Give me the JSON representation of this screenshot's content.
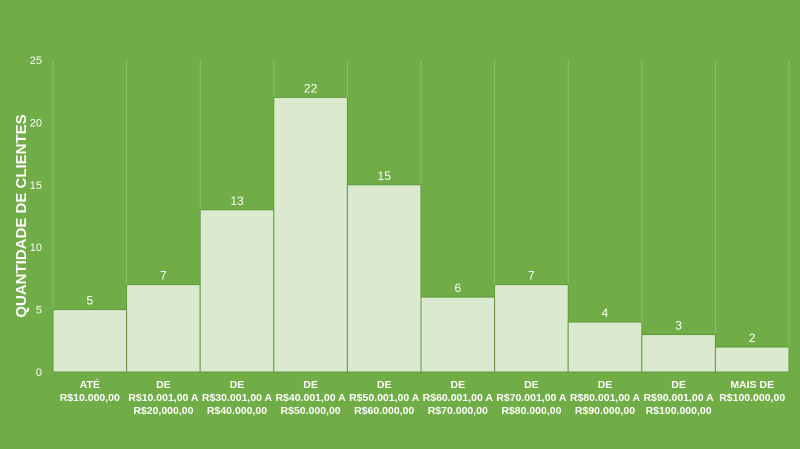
{
  "chart_data": {
    "type": "bar",
    "title": "",
    "xlabel": "",
    "ylabel": "QUANTIDADE DE CLIENTES",
    "ylim": [
      0,
      25
    ],
    "yticks": [
      0,
      5,
      10,
      15,
      20,
      25
    ],
    "grid": "vertical",
    "legend": "none",
    "categories": [
      [
        "ATÉ",
        "R$10.000,00"
      ],
      [
        "DE",
        "R$10.001,00 A",
        "R$20,000,00"
      ],
      [
        "DE",
        "R$30.001,00 A",
        "R$40.000,00"
      ],
      [
        "DE",
        "R$40.001,00 A",
        "R$50.000,00"
      ],
      [
        "DE",
        "R$50.001,00 A",
        "R$60.000,00"
      ],
      [
        "DE",
        "R$60.001,00 A",
        "R$70.000,00"
      ],
      [
        "DE",
        "R$70.001,00 A",
        "R$80.000,00"
      ],
      [
        "DE",
        "R$80.001,00 A",
        "R$90.000,00"
      ],
      [
        "DE",
        "R$90.001,00 A",
        "R$100.000,00"
      ],
      [
        "MAIS DE",
        "R$100.000,00"
      ]
    ],
    "values": [
      5,
      7,
      13,
      22,
      15,
      6,
      7,
      4,
      3,
      2
    ],
    "colors": {
      "background": "#70ad47",
      "bar": "#dbeacf",
      "bar_border": "#5f9a3c",
      "text": "#ffffff"
    }
  }
}
